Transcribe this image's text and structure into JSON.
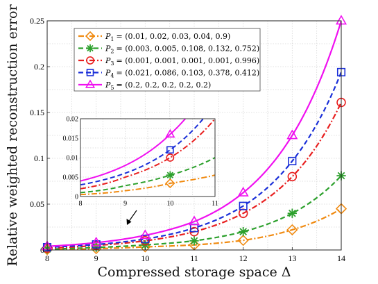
{
  "chart_data": {
    "type": "line",
    "xlabel": "Compressed storage space Δ",
    "ylabel": "Relative weighted reconstruction error",
    "xlim": [
      8,
      14
    ],
    "ylim": [
      0,
      0.25
    ],
    "x_ticks": [
      "8",
      "9",
      "10",
      "11",
      "12",
      "13",
      "14"
    ],
    "y_ticks": [
      "0",
      "0.05",
      "0.1",
      "0.15",
      "0.2",
      "0.25"
    ],
    "grid": true,
    "legend_position": "top-left",
    "x": [
      8,
      9,
      10,
      11,
      12,
      13,
      14
    ],
    "series": [
      {
        "name_subscript": "1",
        "name_text": "= (0.01, 0.02, 0.03, 0.04, 0.9)",
        "color": "#f08a10",
        "line_style": "dash-dot",
        "marker": "diamond",
        "values": [
          0.0005,
          0.0015,
          0.0034,
          0.0055,
          0.0105,
          0.022,
          0.045
        ]
      },
      {
        "name_subscript": "2",
        "name_text": "= (0.003, 0.005, 0.108, 0.132, 0.752)",
        "color": "#2ca02c",
        "line_style": "dash",
        "marker": "asterisk",
        "values": [
          0.001,
          0.0028,
          0.0055,
          0.01,
          0.02,
          0.04,
          0.081
        ]
      },
      {
        "name_subscript": "3",
        "name_text": "= (0.001, 0.001, 0.001, 0.001, 0.996)",
        "color": "#e81e1e",
        "line_style": "dash-dot",
        "marker": "circle",
        "values": [
          0.002,
          0.005,
          0.01,
          0.02,
          0.04,
          0.08,
          0.161
        ]
      },
      {
        "name_subscript": "4",
        "name_text": "= (0.021, 0.086, 0.103, 0.378, 0.412)",
        "color": "#1a2fd8",
        "line_style": "dash",
        "marker": "square",
        "values": [
          0.003,
          0.006,
          0.012,
          0.024,
          0.048,
          0.097,
          0.194
        ]
      },
      {
        "name_subscript": "5",
        "name_text": "= (0.2, 0.2, 0.2, 0.2, 0.2)",
        "color": "#f010f0",
        "line_style": "solid",
        "marker": "triangle",
        "values": [
          0.004,
          0.008,
          0.016,
          0.031,
          0.0625,
          0.125,
          0.25
        ]
      }
    ],
    "inset": {
      "xlim": [
        8,
        11
      ],
      "ylim": [
        0,
        0.02
      ],
      "x_ticks": [
        "8",
        "9",
        "10",
        "11"
      ],
      "y_ticks": [
        "0",
        "0.005",
        "0.01",
        "0.015",
        "0.02"
      ],
      "marker_x": [
        10
      ]
    },
    "annotation": "arrow pointing to the zoomed region near Δ = 9.6"
  }
}
